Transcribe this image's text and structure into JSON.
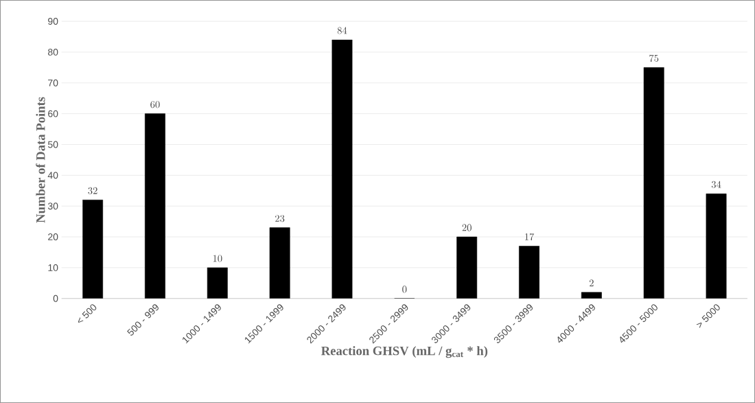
{
  "chart_data": {
    "type": "bar",
    "xlabel": "Reaction GHSV (mL / g$_{cat}$ * h)",
    "ylabel": "Number of Data Points",
    "categories": [
      "< 500",
      "500 - 999",
      "1000 - 1499",
      "1500 - 1999",
      "2000 - 2499",
      "2500 - 2999",
      "3000 - 3499",
      "3500 - 3999",
      "4000 - 4499",
      "4500 - 5000",
      "> 5000"
    ],
    "values": [
      32,
      60,
      10,
      23,
      84,
      0,
      20,
      17,
      2,
      75,
      34
    ],
    "color": "#000000",
    "ylim": [
      0,
      90
    ],
    "yticks": [
      0,
      10,
      20,
      30,
      40,
      50,
      60,
      70,
      80,
      90
    ],
    "grid": "y",
    "data_labels": true
  }
}
